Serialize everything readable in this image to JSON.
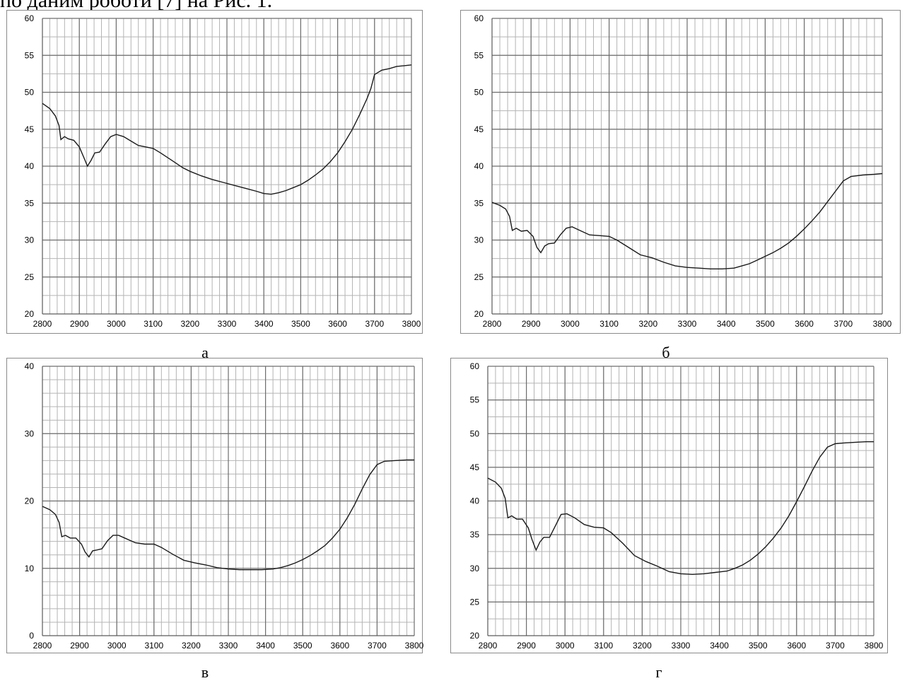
{
  "header_text": "по даним роботи [7] на Рис. 1.",
  "chart_data": [
    {
      "type": "line",
      "caption": "а",
      "xlim": [
        2800,
        3800
      ],
      "ylim": [
        20,
        60
      ],
      "x_ticks": [
        2800,
        2900,
        3000,
        3100,
        3200,
        3300,
        3400,
        3500,
        3600,
        3700,
        3800
      ],
      "y_ticks": [
        20,
        25,
        30,
        35,
        40,
        45,
        50,
        55,
        60
      ],
      "x_minor_step": 20,
      "y_minor_step": 2.5,
      "grid": true,
      "series": [
        {
          "x": [
            2800,
            2820,
            2835,
            2845,
            2850,
            2860,
            2870,
            2885,
            2900,
            2912,
            2922,
            2932,
            2942,
            2955,
            2970,
            2985,
            3000,
            3020,
            3040,
            3060,
            3080,
            3100,
            3120,
            3150,
            3180,
            3200,
            3230,
            3260,
            3290,
            3320,
            3350,
            3380,
            3400,
            3420,
            3440,
            3460,
            3480,
            3500,
            3520,
            3540,
            3560,
            3580,
            3600,
            3620,
            3640,
            3660,
            3680,
            3690,
            3700,
            3720,
            3740,
            3760,
            3780,
            3800
          ],
          "y": [
            48.5,
            47.8,
            46.8,
            45.5,
            43.6,
            44.0,
            43.7,
            43.5,
            42.6,
            41.2,
            40.0,
            40.8,
            41.8,
            41.9,
            43.0,
            44.0,
            44.3,
            44.0,
            43.4,
            42.8,
            42.6,
            42.4,
            41.8,
            40.8,
            39.8,
            39.3,
            38.7,
            38.2,
            37.8,
            37.4,
            37.0,
            36.6,
            36.3,
            36.2,
            36.4,
            36.7,
            37.1,
            37.5,
            38.1,
            38.8,
            39.6,
            40.6,
            41.8,
            43.3,
            45.0,
            47.0,
            49.2,
            50.5,
            52.4,
            53.0,
            53.2,
            53.5,
            53.6,
            53.7
          ]
        }
      ]
    },
    {
      "type": "line",
      "caption": "б",
      "xlim": [
        2800,
        3800
      ],
      "ylim": [
        20,
        60
      ],
      "x_ticks": [
        2800,
        2900,
        3000,
        3100,
        3200,
        3300,
        3400,
        3500,
        3600,
        3700,
        3800
      ],
      "y_ticks": [
        20,
        25,
        30,
        35,
        40,
        45,
        50,
        55,
        60
      ],
      "x_minor_step": 20,
      "y_minor_step": 2.5,
      "grid": true,
      "series": [
        {
          "x": [
            2800,
            2820,
            2835,
            2845,
            2852,
            2862,
            2875,
            2890,
            2905,
            2915,
            2925,
            2935,
            2945,
            2960,
            2975,
            2990,
            3005,
            3025,
            3050,
            3075,
            3100,
            3120,
            3150,
            3180,
            3210,
            3240,
            3270,
            3300,
            3330,
            3360,
            3390,
            3420,
            3440,
            3460,
            3480,
            3500,
            3520,
            3540,
            3560,
            3580,
            3600,
            3620,
            3640,
            3660,
            3680,
            3700,
            3720,
            3750,
            3780,
            3800
          ],
          "y": [
            35.1,
            34.7,
            34.2,
            33.2,
            31.3,
            31.6,
            31.2,
            31.3,
            30.5,
            29.0,
            28.3,
            29.2,
            29.5,
            29.6,
            30.7,
            31.6,
            31.8,
            31.3,
            30.7,
            30.6,
            30.5,
            30.0,
            29.0,
            28.0,
            27.6,
            27.0,
            26.5,
            26.3,
            26.2,
            26.1,
            26.1,
            26.2,
            26.5,
            26.8,
            27.3,
            27.8,
            28.3,
            28.9,
            29.6,
            30.5,
            31.5,
            32.6,
            33.8,
            35.2,
            36.6,
            38.0,
            38.6,
            38.8,
            38.9,
            39.0
          ]
        }
      ]
    },
    {
      "type": "line",
      "caption": "в",
      "xlim": [
        2800,
        3800
      ],
      "ylim": [
        0,
        40
      ],
      "x_ticks": [
        2800,
        2900,
        3000,
        3100,
        3200,
        3300,
        3400,
        3500,
        3600,
        3700,
        3800
      ],
      "y_ticks": [
        0,
        10,
        20,
        30,
        40
      ],
      "x_minor_step": 20,
      "y_minor_step": 2,
      "grid": true,
      "series": [
        {
          "x": [
            2800,
            2820,
            2835,
            2845,
            2852,
            2862,
            2875,
            2890,
            2905,
            2915,
            2925,
            2935,
            2945,
            2960,
            2975,
            2990,
            3005,
            3025,
            3050,
            3075,
            3100,
            3120,
            3150,
            3180,
            3210,
            3240,
            3270,
            3300,
            3330,
            3360,
            3390,
            3420,
            3440,
            3460,
            3480,
            3500,
            3520,
            3540,
            3560,
            3580,
            3600,
            3620,
            3640,
            3660,
            3680,
            3700,
            3720,
            3750,
            3780,
            3800
          ],
          "y": [
            19.2,
            18.7,
            18.0,
            16.8,
            14.7,
            14.9,
            14.5,
            14.5,
            13.6,
            12.4,
            11.7,
            12.6,
            12.7,
            12.9,
            14.1,
            14.9,
            14.9,
            14.4,
            13.8,
            13.6,
            13.6,
            13.1,
            12.1,
            11.2,
            10.8,
            10.5,
            10.1,
            9.9,
            9.8,
            9.8,
            9.8,
            9.9,
            10.1,
            10.4,
            10.8,
            11.3,
            11.9,
            12.6,
            13.4,
            14.5,
            15.8,
            17.5,
            19.5,
            21.8,
            23.9,
            25.4,
            25.9,
            26.0,
            26.1,
            26.1
          ]
        }
      ]
    },
    {
      "type": "line",
      "caption": "г",
      "xlim": [
        2800,
        3800
      ],
      "ylim": [
        20,
        60
      ],
      "x_ticks": [
        2800,
        2900,
        3000,
        3100,
        3200,
        3300,
        3400,
        3500,
        3600,
        3700,
        3800
      ],
      "y_ticks": [
        20,
        25,
        30,
        35,
        40,
        45,
        50,
        55,
        60
      ],
      "x_minor_step": 20,
      "y_minor_step": 2.5,
      "grid": true,
      "series": [
        {
          "x": [
            2800,
            2820,
            2835,
            2845,
            2852,
            2862,
            2875,
            2890,
            2905,
            2915,
            2925,
            2935,
            2945,
            2960,
            2975,
            2990,
            3005,
            3025,
            3050,
            3075,
            3100,
            3120,
            3150,
            3180,
            3210,
            3240,
            3270,
            3300,
            3330,
            3360,
            3390,
            3420,
            3440,
            3460,
            3480,
            3500,
            3520,
            3540,
            3560,
            3580,
            3600,
            3620,
            3640,
            3660,
            3680,
            3700,
            3720,
            3750,
            3780,
            3800
          ],
          "y": [
            43.4,
            42.8,
            41.9,
            40.4,
            37.5,
            37.8,
            37.3,
            37.3,
            36.0,
            34.2,
            32.7,
            33.9,
            34.6,
            34.6,
            36.3,
            38.0,
            38.1,
            37.5,
            36.5,
            36.1,
            36.0,
            35.3,
            33.7,
            31.9,
            31.0,
            30.3,
            29.5,
            29.2,
            29.1,
            29.2,
            29.4,
            29.6,
            30.0,
            30.5,
            31.2,
            32.1,
            33.2,
            34.5,
            36.0,
            37.8,
            39.9,
            42.1,
            44.4,
            46.5,
            48.0,
            48.5,
            48.6,
            48.7,
            48.8,
            48.8
          ]
        }
      ]
    }
  ]
}
